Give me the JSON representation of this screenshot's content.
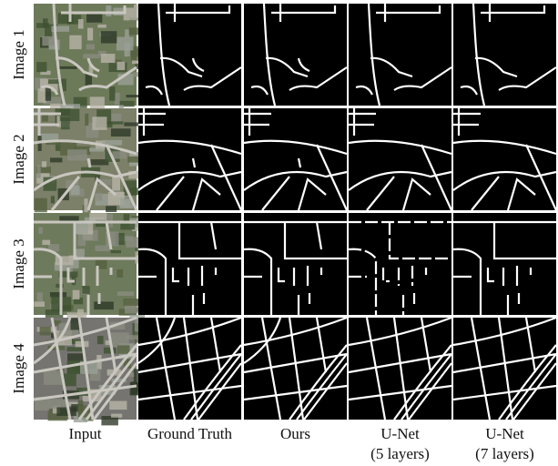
{
  "figure": {
    "rows": [
      "Image 1",
      "Image 2",
      "Image 3",
      "Image 4"
    ],
    "columns": [
      [
        "Input"
      ],
      [
        "Ground Truth"
      ],
      [
        "Ours"
      ],
      [
        "U-Net",
        "(5 layers)"
      ],
      [
        "U-Net",
        "(7 layers)"
      ]
    ]
  }
}
